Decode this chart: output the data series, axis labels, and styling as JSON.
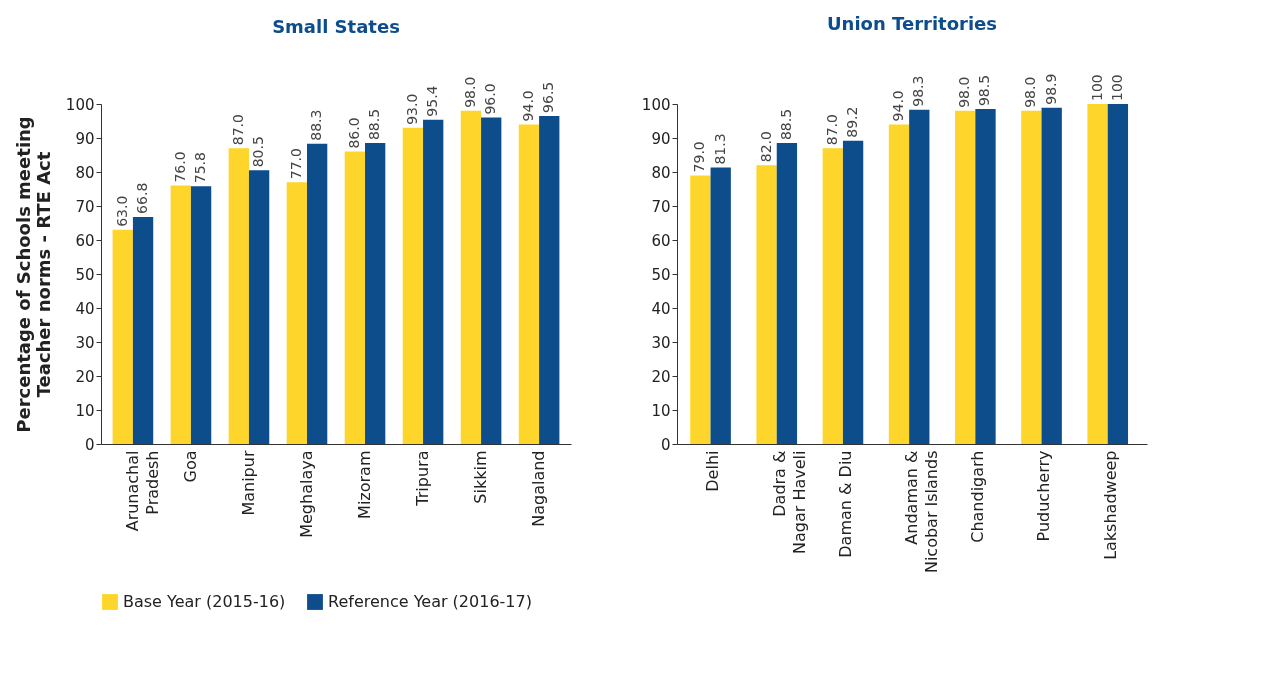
{
  "chart_data": [
    {
      "type": "bar",
      "title": "Small States",
      "ylabel": "Percentage of Schools meeting\nTeacher norms - RTE Act",
      "categories": [
        "Arunachal\nPradesh",
        "Goa",
        "Manipur",
        "Meghalaya",
        "Mizoram",
        "Tripura",
        "Sikkim",
        "Nagaland"
      ],
      "series": [
        {
          "name": "Base Year (2015-16)",
          "color": "#fdd52b",
          "values": [
            63.0,
            76.0,
            87.0,
            77.0,
            86.0,
            93.0,
            98.0,
            94.0
          ],
          "value_labels": [
            "63.0",
            "76.0",
            "87.0",
            "77.0",
            "86.0",
            "93.0",
            "98.0",
            "94.0"
          ]
        },
        {
          "name": "Reference Year (2016-17)",
          "color": "#0e4d8c",
          "values": [
            66.8,
            75.8,
            80.5,
            88.3,
            88.5,
            95.4,
            96.0,
            96.5
          ],
          "value_labels": [
            "66.8",
            "75.8",
            "80.5",
            "88.3",
            "88.5",
            "95.4",
            "96.0",
            "96.5"
          ]
        }
      ],
      "ylim": [
        0,
        100
      ],
      "yticks": [
        0,
        10,
        20,
        30,
        40,
        50,
        60,
        70,
        80,
        90,
        100
      ],
      "grid": false,
      "legend": "bottom"
    },
    {
      "type": "bar",
      "title": "Union Territories",
      "categories": [
        "Delhi",
        "Dadra &\nNagar Haveli",
        "Daman & Diu",
        "Andaman &\nNicobar Islands",
        "Chandigarh",
        "Puducherry",
        "Lakshadweep"
      ],
      "series": [
        {
          "name": "Base Year (2015-16)",
          "color": "#fdd52b",
          "values": [
            79.0,
            82.0,
            87.0,
            94.0,
            98.0,
            98.0,
            100
          ],
          "value_labels": [
            "79.0",
            "82.0",
            "87.0",
            "94.0",
            "98.0",
            "98.0",
            "100"
          ]
        },
        {
          "name": "Reference Year (2016-17)",
          "color": "#0e4d8c",
          "values": [
            81.3,
            88.5,
            89.2,
            98.3,
            98.5,
            98.9,
            100
          ],
          "value_labels": [
            "81.3",
            "88.5",
            "89.2",
            "98.3",
            "98.5",
            "98.9",
            "100"
          ]
        }
      ],
      "ylim": [
        0,
        100
      ],
      "yticks": [
        0,
        10,
        20,
        30,
        40,
        50,
        60,
        70,
        80,
        90,
        100
      ],
      "grid": false,
      "legend": "bottom"
    }
  ]
}
